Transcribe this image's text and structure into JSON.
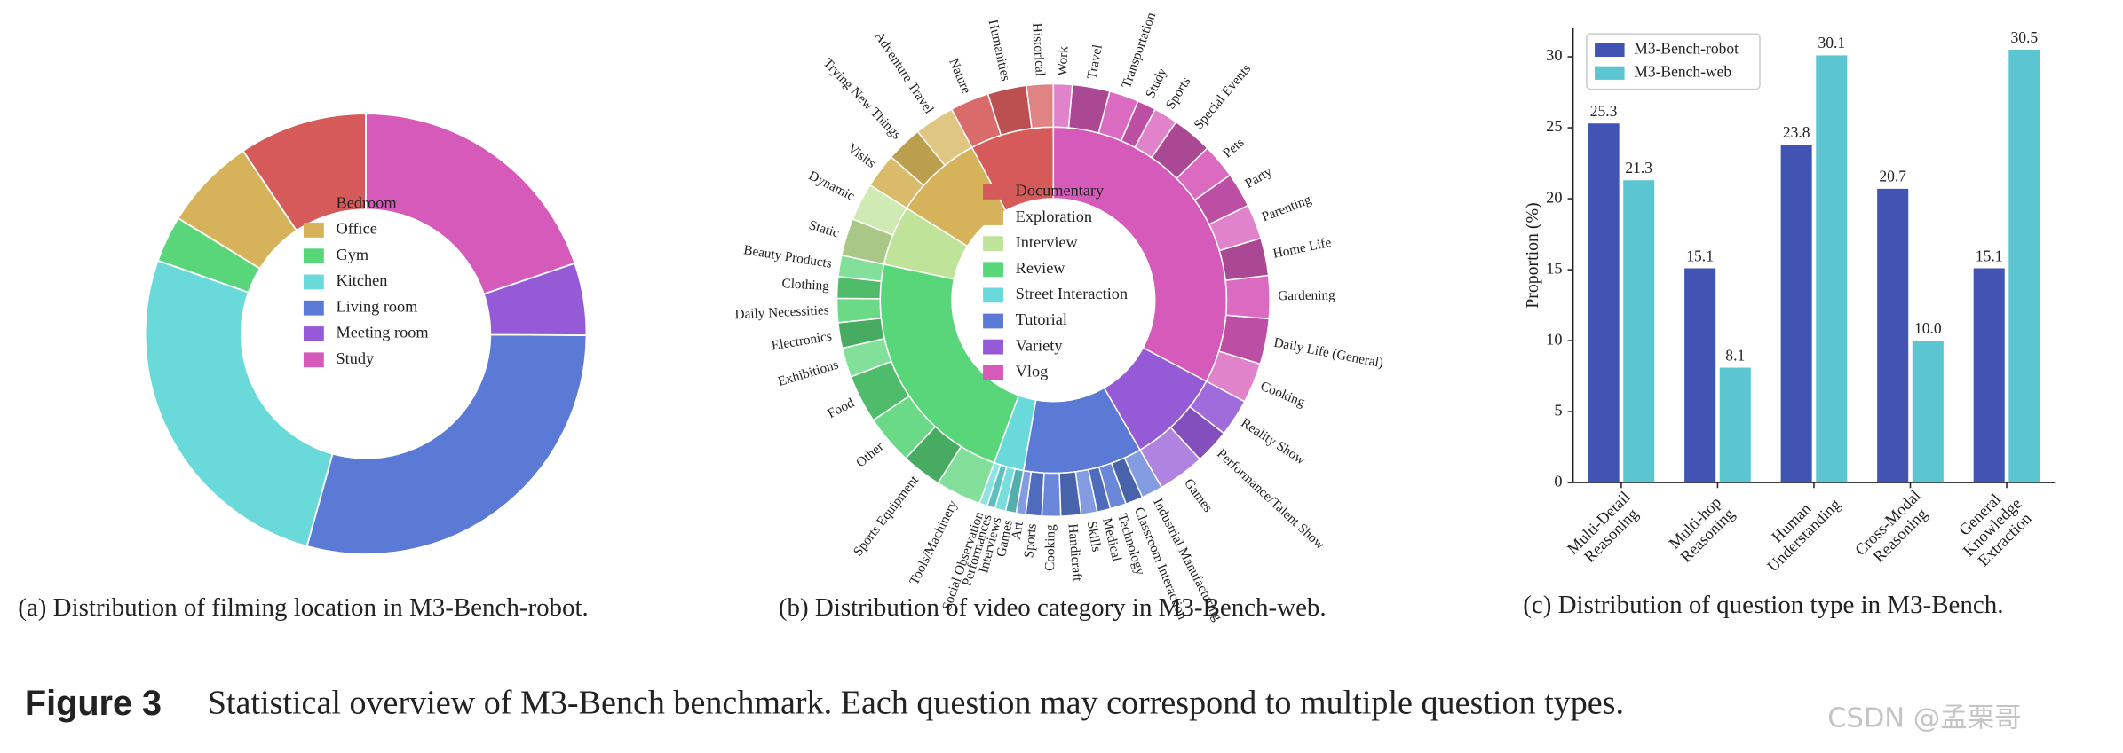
{
  "chart_data": [
    {
      "type": "donut",
      "caption": "(a) Distribution of filming location in M3-Bench-robot.",
      "categories": [
        "Bedroom",
        "Office",
        "Gym",
        "Kitchen",
        "Living room",
        "Meeting room",
        "Study"
      ],
      "values": [
        9.4,
        6.8,
        3.4,
        26.1,
        29.2,
        5.3,
        19.8
      ],
      "colors": [
        "#d65a5a",
        "#d6b35a",
        "#5ad67a",
        "#6ad9d9",
        "#5a7ad6",
        "#955ad6",
        "#d65ab9"
      ]
    },
    {
      "type": "sunburst",
      "caption": "(b) Distribution of video category in M3-Bench-web.",
      "categories": [
        "Documentary",
        "Exploration",
        "Interview",
        "Review",
        "Street Interaction",
        "Tutorial",
        "Variety",
        "Vlog"
      ],
      "values": [
        7.8,
        8.3,
        5.6,
        22.8,
        2.8,
        11.1,
        8.9,
        32.8
      ],
      "colors": [
        "#d65a5a",
        "#d6b35a",
        "#c0e39a",
        "#5ad67a",
        "#6ad9d9",
        "#5a7ad6",
        "#955ad6",
        "#d65ab9"
      ],
      "children": [
        {
          "labels": [
            "Historical",
            "Humanities",
            "Nature"
          ],
          "values": [
            2.0,
            2.9,
            2.9
          ]
        },
        {
          "labels": [
            "Adventure Travel",
            "Trying New Things",
            "Visits"
          ],
          "values": [
            3.0,
            2.7,
            2.6
          ]
        },
        {
          "labels": [
            "Dynamic",
            "Static"
          ],
          "values": [
            2.8,
            2.8
          ]
        },
        {
          "labels": [
            "Beauty Products",
            "Clothing",
            "Daily Necessities",
            "Electronics",
            "Exhibitions",
            "Food",
            "Other",
            "Sports Equipment",
            "Tools/Machinery"
          ],
          "values": [
            1.6,
            1.6,
            1.8,
            1.9,
            2.2,
            3.6,
            3.7,
            3.0,
            3.4
          ]
        },
        {
          "labels": [
            "Social Observation",
            "Performances",
            "Interviews",
            "Games"
          ],
          "values": [
            0.6,
            0.6,
            0.8,
            0.8
          ]
        },
        {
          "labels": [
            "Art",
            "Sports",
            "Cooking",
            "Handicraft",
            "Skills",
            "Medical",
            "Technology",
            "Classroom Interaction",
            "Industrial Manufacturing"
          ],
          "values": [
            0.7,
            1.2,
            1.4,
            1.5,
            1.2,
            1.0,
            1.2,
            1.3,
            1.6
          ]
        },
        {
          "labels": [
            "Games",
            "Performance/Talent Show",
            "Reality Show"
          ],
          "values": [
            3.5,
            2.6,
            2.8
          ]
        },
        {
          "labels": [
            "Cooking",
            "Daily Life (General)",
            "Gardening",
            "Home Life",
            "Parenting",
            "Party",
            "Pets",
            "Special Events",
            "Sports",
            "Study",
            "Transportation",
            "Travel",
            "Work"
          ],
          "values": [
            3.0,
            3.4,
            3.2,
            2.8,
            2.6,
            2.6,
            2.6,
            3.0,
            1.8,
            1.4,
            2.2,
            2.8,
            1.4
          ]
        }
      ]
    },
    {
      "type": "bar",
      "caption": "(c) Distribution of question type in M3-Bench.",
      "categories": [
        [
          "Multi-Detail",
          "Reasoning"
        ],
        [
          "Multi-hop",
          "Reasoning"
        ],
        [
          "Human",
          "Understanding"
        ],
        [
          "Cross-Modal",
          "Reasoning"
        ],
        [
          "General",
          "Knowledge",
          "Extraction"
        ]
      ],
      "series": [
        {
          "name": "M3-Bench-robot",
          "color": "#4154b3",
          "values": [
            25.3,
            15.1,
            23.8,
            20.7,
            15.1
          ],
          "value_labels": [
            "25.3",
            "15.1",
            "23.8",
            "20.7",
            "15.1"
          ]
        },
        {
          "name": "M3-Bench-web",
          "color": "#5cc5d2",
          "values": [
            21.3,
            8.1,
            30.1,
            10.0,
            30.5
          ],
          "value_labels": [
            "21.3",
            "8.1",
            "30.1",
            "10.0",
            "30.5"
          ]
        }
      ],
      "ylabel": "Proportion (%)",
      "ylim": [
        0,
        32
      ],
      "yticks": [
        0,
        5,
        10,
        15,
        20,
        25,
        30
      ],
      "legend": "upper left"
    }
  ],
  "figure": {
    "label": "Figure 3",
    "text": "Statistical overview of M3-Bench benchmark. Each question may correspond to multiple question types."
  },
  "watermark": "CSDN @孟栗哥"
}
